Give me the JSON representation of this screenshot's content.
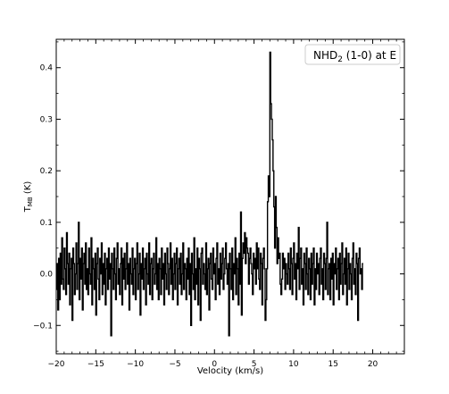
{
  "chart_data": {
    "type": "line",
    "style": "step",
    "legend": {
      "label_main": "NHD",
      "label_sub": "2",
      "label_rest": " (1-0) at E",
      "placement": "top-right"
    },
    "xlabel": "Velocity (km/s)",
    "ylabel_main": "T",
    "ylabel_sub": "MB",
    "ylabel_rest": " (K)",
    "xlim": [
      -20,
      24
    ],
    "ylim": [
      -0.155,
      0.455
    ],
    "xticks": [
      -20,
      -15,
      -10,
      -5,
      0,
      5,
      10,
      15,
      20
    ],
    "xtick_labels": [
      "−20",
      "−15",
      "−10",
      "−5",
      "0",
      "5",
      "10",
      "15",
      "20"
    ],
    "yticks": [
      -0.1,
      0.0,
      0.1,
      0.2,
      0.3,
      0.4
    ],
    "ytick_labels": [
      "−0.1",
      "0.0",
      "0.1",
      "0.2",
      "0.3",
      "0.4"
    ],
    "grid": false,
    "line_color": "#000000",
    "series": [
      {
        "x_start": -20,
        "x_step": 0.1,
        "y": [
          -0.03,
          0.02,
          -0.07,
          0.03,
          -0.05,
          0.04,
          -0.02,
          0.07,
          -0.01,
          -0.03,
          0.05,
          0.01,
          -0.04,
          0.08,
          0.02,
          -0.02,
          0.04,
          -0.06,
          0.01,
          0.03,
          -0.09,
          0.05,
          0.02,
          -0.04,
          0.0,
          0.06,
          -0.03,
          0.02,
          0.1,
          -0.05,
          0.03,
          -0.01,
          0.05,
          -0.07,
          0.02,
          0.04,
          -0.02,
          0.06,
          -0.03,
          0.01,
          -0.04,
          0.05,
          0.0,
          -0.02,
          0.07,
          -0.06,
          0.03,
          0.01,
          -0.03,
          0.04,
          -0.08,
          0.02,
          0.05,
          -0.01,
          -0.05,
          0.03,
          0.0,
          0.06,
          -0.04,
          0.02,
          -0.02,
          0.04,
          -0.06,
          0.01,
          0.03,
          -0.03,
          0.05,
          -0.01,
          0.02,
          -0.12,
          0.04,
          0.01,
          -0.03,
          0.05,
          0.0,
          -0.05,
          0.03,
          0.06,
          -0.02,
          0.01,
          -0.04,
          0.02,
          0.05,
          -0.06,
          0.03,
          -0.01,
          0.04,
          -0.03,
          0.01,
          0.06,
          -0.02,
          0.02,
          -0.07,
          0.03,
          0.0,
          -0.02,
          0.05,
          -0.04,
          0.01,
          0.03,
          -0.05,
          0.02,
          0.06,
          -0.03,
          0.0,
          0.04,
          -0.08,
          0.02,
          -0.01,
          0.05,
          -0.03,
          0.01,
          0.03,
          -0.06,
          0.04,
          0.0,
          -0.02,
          0.06,
          -0.04,
          0.02,
          0.03,
          -0.05,
          0.01,
          0.04,
          -0.02,
          0.0,
          0.07,
          -0.03,
          0.02,
          -0.05,
          0.03,
          0.01,
          -0.04,
          0.05,
          -0.01,
          0.02,
          -0.06,
          0.04,
          0.0,
          -0.03,
          0.05,
          0.02,
          -0.04,
          0.01,
          0.06,
          -0.02,
          0.03,
          -0.05,
          0.0,
          0.04,
          -0.03,
          0.02,
          0.05,
          -0.06,
          0.01,
          0.03,
          -0.02,
          0.04,
          -0.04,
          0.0,
          0.06,
          -0.03,
          0.02,
          0.01,
          -0.05,
          0.03,
          -0.01,
          0.05,
          -0.04,
          0.02,
          -0.1,
          0.04,
          0.0,
          -0.03,
          0.07,
          -0.05,
          0.01,
          -0.02,
          0.05,
          -0.06,
          0.03,
          0.01,
          -0.09,
          0.04,
          0.05,
          -0.02,
          0.02,
          0.0,
          -0.03,
          0.06,
          -0.04,
          0.01,
          0.03,
          -0.07,
          0.02,
          0.04,
          -0.01,
          -0.03,
          0.05,
          0.0,
          0.02,
          -0.05,
          0.03,
          0.06,
          -0.02,
          0.01,
          -0.04,
          0.04,
          -0.01,
          0.02,
          0.05,
          -0.03,
          0.0,
          0.03,
          0.06,
          0.01,
          -0.02,
          0.02,
          -0.12,
          0.04,
          0.01,
          -0.03,
          0.05,
          -0.05,
          0.02,
          0.0,
          0.07,
          -0.04,
          0.03,
          0.01,
          -0.06,
          0.04,
          -0.02,
          0.12,
          -0.08,
          0.03,
          0.06,
          0.04,
          0.08,
          0.02,
          0.07,
          0.05,
          0.04,
          -0.02,
          0.03,
          0.05,
          0.02,
          0.0,
          -0.04,
          0.04,
          0.01,
          0.03,
          -0.02,
          0.06,
          0.01,
          0.05,
          -0.01,
          -0.03,
          0.04,
          0.02,
          -0.06,
          0.03,
          0.05,
          0.01,
          -0.09,
          -0.05,
          0.01,
          0.14,
          0.19,
          0.15,
          0.43,
          0.33,
          0.3,
          0.26,
          0.2,
          0.13,
          0.05,
          0.15,
          0.09,
          0.02,
          0.07,
          0.03,
          0.04,
          -0.02,
          -0.04,
          -0.01,
          0.04,
          0.01,
          0.03,
          -0.03,
          0.02,
          0.0,
          -0.02,
          0.04,
          0.01,
          -0.03,
          0.05,
          0.02,
          -0.04,
          0.03,
          0.06,
          -0.01,
          0.02,
          -0.05,
          0.04,
          0.01,
          0.09,
          -0.03,
          0.03,
          0.05,
          -0.02,
          0.01,
          -0.06,
          0.04,
          0.02,
          -0.03,
          0.05,
          0.0,
          -0.04,
          0.03,
          0.01,
          -0.05,
          0.04,
          -0.02,
          0.02,
          0.05,
          -0.06,
          0.01,
          -0.03,
          0.04,
          0.0,
          0.02,
          -0.04,
          0.03,
          0.05,
          -0.02,
          0.01,
          -0.05,
          0.04,
          0.02,
          -0.03,
          0.03,
          0.1,
          -0.04,
          0.01,
          0.02,
          -0.05,
          0.03,
          -0.01,
          0.04,
          -0.06,
          0.02,
          0.0,
          0.05,
          -0.03,
          0.01,
          0.03,
          -0.05,
          0.04,
          -0.02,
          0.02,
          0.06,
          -0.04,
          0.0,
          0.03,
          -0.02,
          0.05,
          -0.06,
          0.01,
          0.04,
          -0.03,
          0.02,
          0.0,
          -0.05,
          0.03,
          0.06,
          -0.02,
          0.01,
          -0.04,
          0.04,
          0.02,
          -0.09,
          0.03,
          0.05,
          0.0,
          0.01,
          -0.03,
          0.02
        ]
      }
    ]
  }
}
